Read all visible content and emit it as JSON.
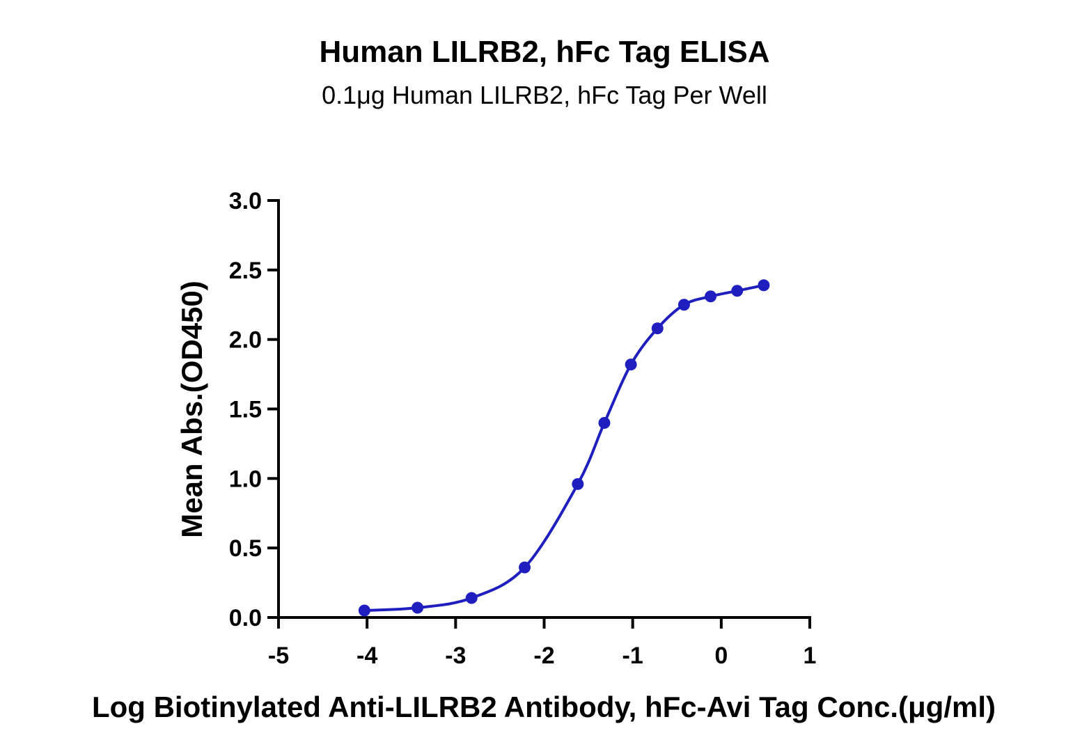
{
  "chart_data": {
    "type": "line",
    "title": "Human LILRB2, hFc Tag ELISA",
    "subtitle": "0.1μg Human LILRB2, hFc Tag Per Well",
    "xlabel": "Log Biotinylated Anti-LILRB2 Antibody, hFc-Avi Tag Conc.(μg/ml)",
    "ylabel": "Mean Abs.(OD450)",
    "xlim": [
      -5,
      1
    ],
    "ylim": [
      0,
      3.0
    ],
    "x_ticks": [
      "-5",
      "-4",
      "-3",
      "-2",
      "-1",
      "0",
      "1"
    ],
    "y_ticks": [
      "0.0",
      "0.5",
      "1.0",
      "1.5",
      "2.0",
      "2.5",
      "3.0"
    ],
    "grid": false,
    "series": [
      {
        "color": "#1f1fbf",
        "x": [
          -4.03,
          -3.43,
          -2.82,
          -2.22,
          -1.62,
          -1.32,
          -1.02,
          -0.72,
          -0.42,
          -0.12,
          0.18,
          0.48
        ],
        "y": [
          0.05,
          0.07,
          0.14,
          0.36,
          0.96,
          1.4,
          1.82,
          2.08,
          2.25,
          2.31,
          2.35,
          2.39
        ]
      }
    ]
  }
}
